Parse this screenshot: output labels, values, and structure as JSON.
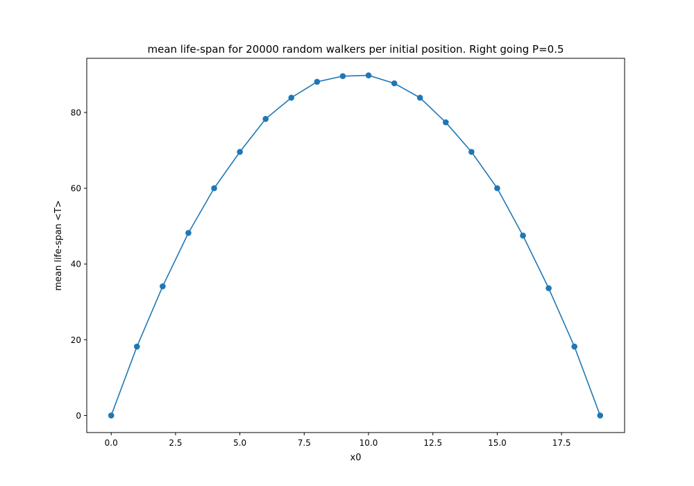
{
  "chart_data": {
    "type": "line",
    "title": "mean life-span for 20000 random walkers per initial position. Right going P=0.5",
    "xlabel": "x0",
    "ylabel": "mean life-span <T>",
    "xlim": [
      -0.95,
      19.95
    ],
    "ylim": [
      -4.5,
      94.3
    ],
    "x_ticks": [
      0.0,
      2.5,
      5.0,
      7.5,
      10.0,
      12.5,
      15.0,
      17.5
    ],
    "x_tick_labels": [
      "0.0",
      "2.5",
      "5.0",
      "7.5",
      "10.0",
      "12.5",
      "15.0",
      "17.5"
    ],
    "y_ticks": [
      0,
      20,
      40,
      60,
      80
    ],
    "y_tick_labels": [
      "0",
      "20",
      "40",
      "60",
      "80"
    ],
    "grid": false,
    "series": [
      {
        "color": "#1f77b4",
        "marker": "circle",
        "x": [
          0,
          1,
          2,
          3,
          4,
          5,
          6,
          7,
          8,
          9,
          10,
          11,
          12,
          13,
          14,
          15,
          16,
          17,
          18,
          19
        ],
        "y": [
          0,
          18.2,
          34.1,
          48.2,
          60.0,
          69.6,
          78.3,
          83.9,
          88.1,
          89.6,
          89.8,
          87.7,
          83.9,
          77.4,
          69.6,
          60.0,
          47.5,
          33.6,
          18.2,
          0
        ]
      }
    ]
  }
}
